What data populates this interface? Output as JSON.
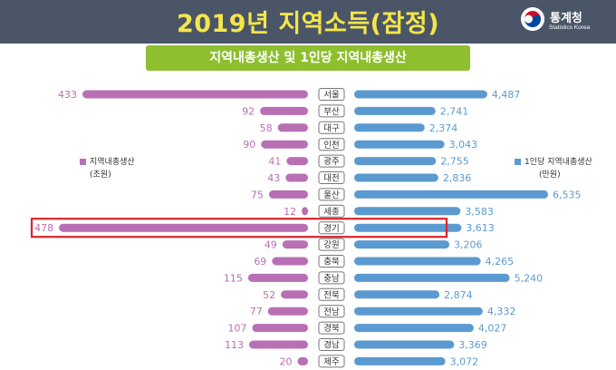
{
  "header": {
    "title": "2019년 지역소득(잠정)",
    "org_name": "통계청",
    "org_sub": "Statistics Korea",
    "bg_color": "#4a5668",
    "title_color": "#f4e64a"
  },
  "subtitle": "지역내총생산 및 1인당 지역내총생산",
  "legend": {
    "left_label": "지역내총생산",
    "left_unit": "(조원)",
    "right_label": "1인당 지역내총생산",
    "right_unit": "(만원)"
  },
  "colors": {
    "grdp": "#b86fb4",
    "per_capita": "#5b9ad0",
    "highlight": "#d6262b",
    "subtitle_bg": "#8dbf2e"
  },
  "chart_data": {
    "type": "bar",
    "categories": [
      "서울",
      "부산",
      "대구",
      "인천",
      "광주",
      "대전",
      "울산",
      "세종",
      "경기",
      "강원",
      "충북",
      "충남",
      "전북",
      "전남",
      "경북",
      "경남",
      "제주"
    ],
    "series": [
      {
        "name": "지역내총생산",
        "unit": "(조원)",
        "values": [
          433,
          92,
          58,
          90,
          41,
          43,
          75,
          12,
          478,
          49,
          69,
          115,
          52,
          77,
          107,
          113,
          20
        ]
      },
      {
        "name": "1인당 지역내총생산",
        "unit": "(만원)",
        "values": [
          4487,
          2741,
          2374,
          3043,
          2755,
          2836,
          6535,
          3583,
          3613,
          3206,
          4265,
          5240,
          2874,
          4332,
          4027,
          3369,
          3072
        ]
      }
    ],
    "value_labels_left": [
      "433",
      "92",
      "58",
      "90",
      "41",
      "43",
      "75",
      "12",
      "478",
      "49",
      "69",
      "115",
      "52",
      "77",
      "107",
      "113",
      "20"
    ],
    "value_labels_right": [
      "4,487",
      "2,741",
      "2,374",
      "3,043",
      "2,755",
      "2,836",
      "6,535",
      "3,583",
      "3,613",
      "3,206",
      "4,265",
      "5,240",
      "2,874",
      "4,332",
      "4,027",
      "3,369",
      "3,072"
    ],
    "highlight_category": "경기",
    "left_max": 480,
    "right_max": 6535
  }
}
